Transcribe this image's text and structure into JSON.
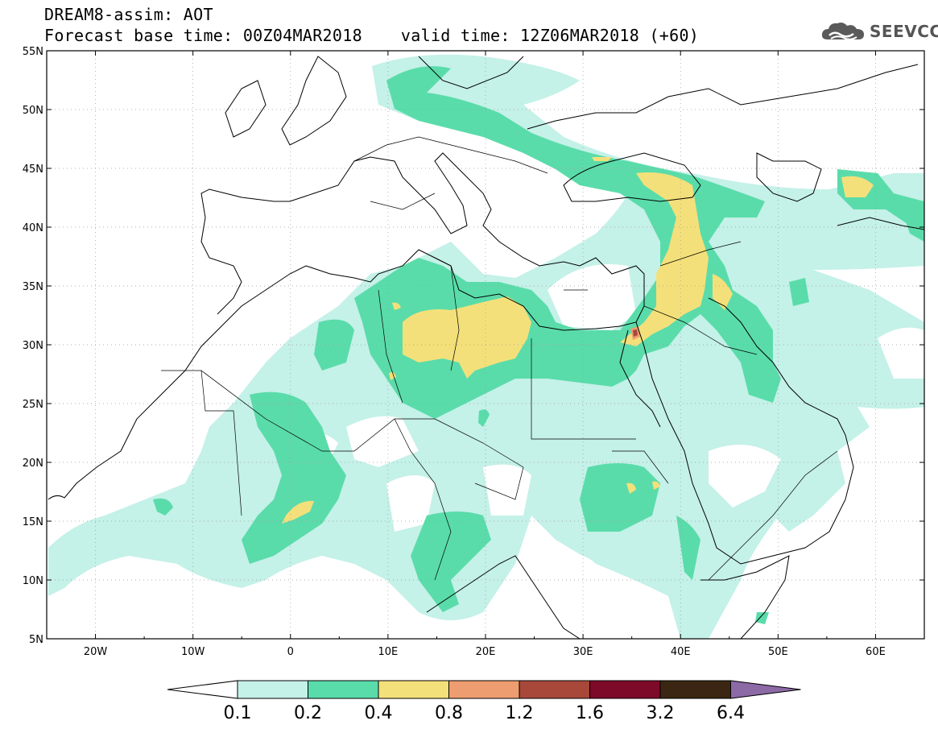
{
  "header": {
    "title": "DREAM8-assim: AOT",
    "base_time_label": "Forecast base time: 00Z04MAR2018",
    "valid_time_label": "valid time: 12Z06MAR2018 (+60)"
  },
  "logo": {
    "text": "SEEVCCC",
    "icon": "cloud-icon"
  },
  "map": {
    "lon_range": [
      -25,
      65
    ],
    "lat_range": [
      5,
      55
    ],
    "lat_ticks": [
      "5N",
      "10N",
      "15N",
      "20N",
      "25N",
      "30N",
      "35N",
      "40N",
      "45N",
      "50N",
      "55N"
    ],
    "lon_ticks": [
      "20W",
      "10W",
      "0",
      "10E",
      "20E",
      "30E",
      "40E",
      "50E",
      "60E"
    ],
    "grid": true
  },
  "colorbar": {
    "levels": [
      "0.1",
      "0.2",
      "0.4",
      "0.8",
      "1.2",
      "1.6",
      "3.2",
      "6.4"
    ],
    "colors": [
      "#ffffff",
      "#c4f1e8",
      "#5adcaa",
      "#f4e07a",
      "#ee9d70",
      "#a7483a",
      "#7c0a28",
      "#3a2612",
      "#8c6aa6"
    ]
  },
  "colors": {
    "aot_01_02": "#c4f1e8",
    "aot_02_04": "#5adcaa",
    "aot_04_08": "#f4e07a",
    "aot_08_12": "#ee9d70",
    "aot_12_16": "#a7483a",
    "aot_16_32": "#7c0a28"
  }
}
